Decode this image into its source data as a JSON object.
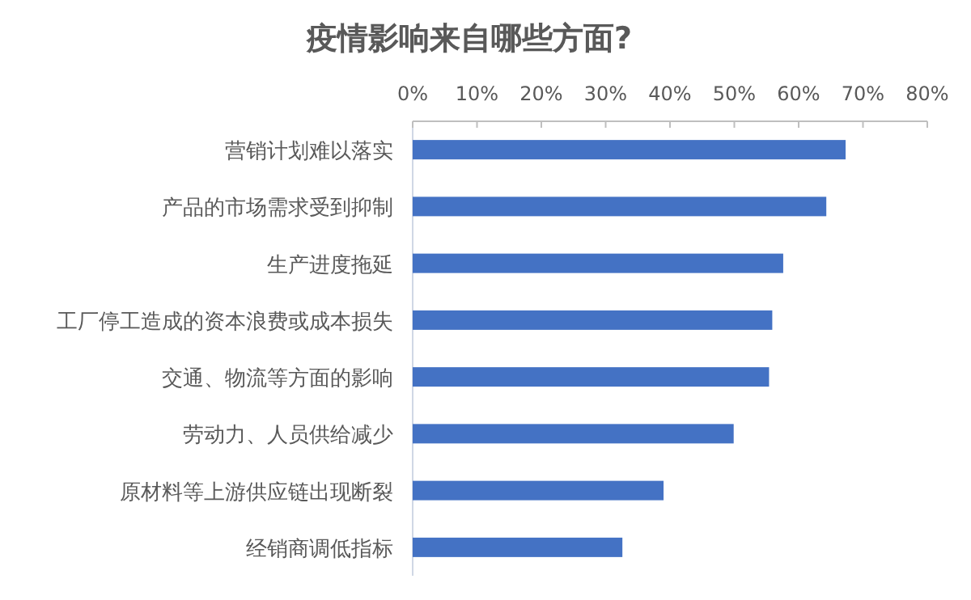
{
  "chart_data": {
    "type": "bar",
    "orientation": "horizontal",
    "title": "疫情影响来自哪些方面?",
    "categories": [
      "营销计划难以落实",
      "产品的市场需求受到抑制",
      "生产进度拖延",
      "工厂停工造成的资本浪费或成本损失",
      "交通、物流等方面的影响",
      "劳动力、人员供给减少",
      "原材料等上游供应链出现断裂",
      "经销商调低指标"
    ],
    "values": [
      67.3,
      64.3,
      57.6,
      55.9,
      55.4,
      49.9,
      39.0,
      32.6
    ],
    "color": "#4472c4",
    "xlim": [
      0,
      80
    ],
    "xticks": [
      {
        "value": 0,
        "label": "0%"
      },
      {
        "value": 10,
        "label": "10%"
      },
      {
        "value": 20,
        "label": "20%"
      },
      {
        "value": 30,
        "label": "30%"
      },
      {
        "value": 40,
        "label": "40%"
      },
      {
        "value": 50,
        "label": "50%"
      },
      {
        "value": 60,
        "label": "60%"
      },
      {
        "value": 70,
        "label": "70%"
      },
      {
        "value": 80,
        "label": "80%"
      }
    ],
    "grid": false
  }
}
